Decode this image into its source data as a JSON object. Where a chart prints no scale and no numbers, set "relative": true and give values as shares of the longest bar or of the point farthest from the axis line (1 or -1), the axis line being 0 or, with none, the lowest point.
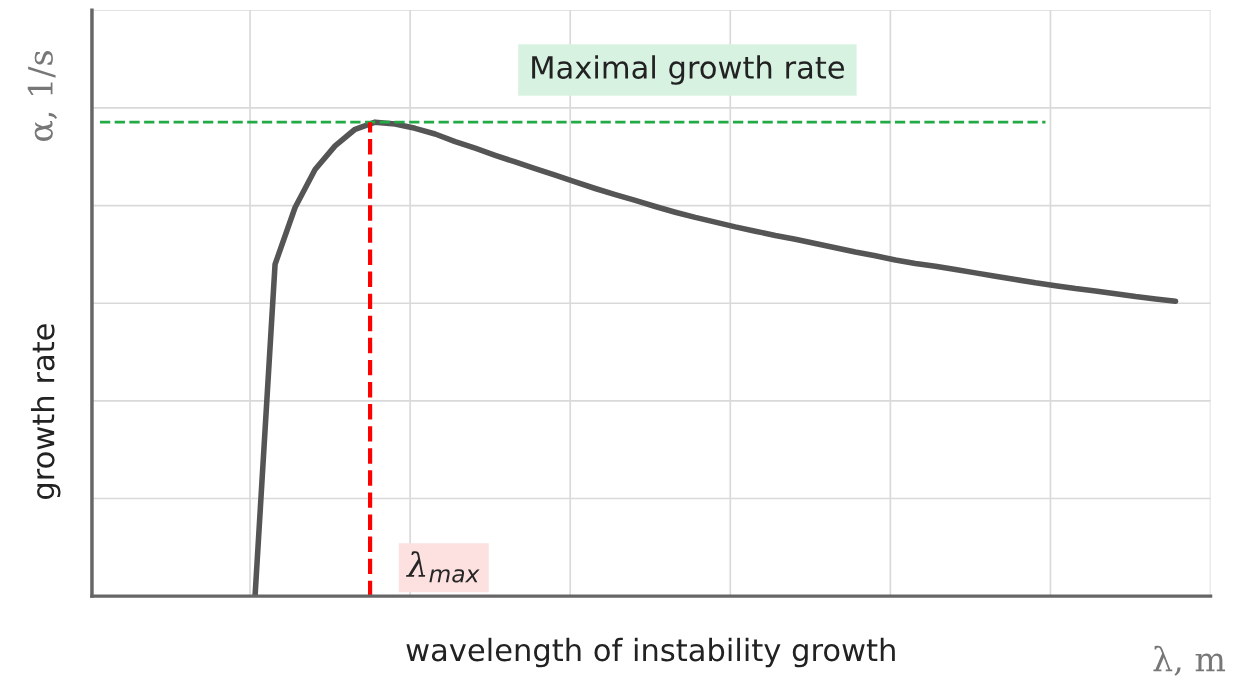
{
  "chart_data": {
    "type": "line",
    "relative": true,
    "xlabel": "wavelength of instability growth",
    "annotations": [
      "α, 1/s",
      "λ, m",
      "Maximal growth rate",
      "λ$_{max}$",
      "growth rate"
    ],
    "categories": [
      null,
      null,
      null,
      null,
      null,
      null,
      null,
      null,
      null,
      null,
      null,
      null,
      null,
      null,
      null,
      null,
      null,
      null,
      null,
      null,
      null,
      null,
      null,
      null,
      null,
      null,
      null,
      null,
      null,
      null,
      null,
      null,
      null,
      null,
      null,
      null,
      null,
      null,
      null,
      null,
      null,
      null,
      null,
      null,
      null,
      null,
      null
    ],
    "series": [
      {
        "color": "#555555",
        "values": [
          0,
          0.7,
          0.82,
          0.9,
          0.95,
          0.985,
          1.0,
          0.996,
          0.987,
          0.975,
          0.959,
          0.945,
          0.93,
          0.916,
          0.902,
          0.888,
          0.874,
          0.86,
          0.847,
          0.835,
          0.822,
          0.81,
          0.799,
          0.789,
          0.779,
          0.77,
          0.761,
          0.753,
          0.744,
          0.735,
          0.726,
          0.718,
          0.709,
          0.702,
          0.696,
          0.689,
          0.682,
          0.675,
          0.668,
          0.661,
          0.655,
          0.649,
          0.644,
          0.638,
          0.632,
          0.627,
          0.622
        ]
      }
    ],
    "tick_labels": false,
    "grid": true,
    "legend": false,
    "marker": "none",
    "line_style": "solid"
  }
}
